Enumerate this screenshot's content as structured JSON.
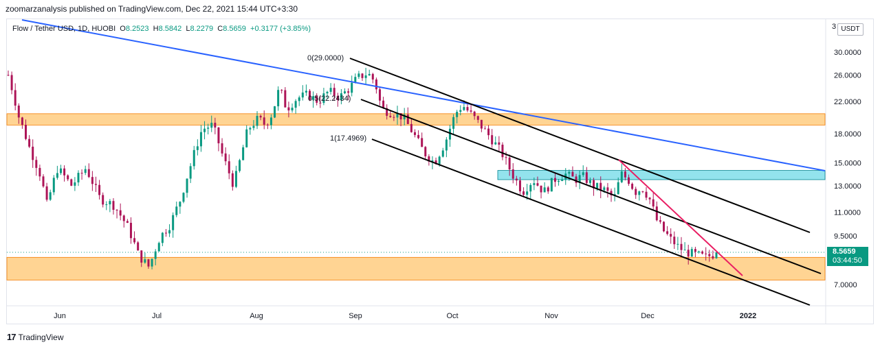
{
  "header": {
    "publication": "zoomarzanalysis published on TradingView.com, Dec 22, 2021 15:44 UTC+3:30"
  },
  "legend": {
    "symbol": "Flow / Tether USD, 1D, HUOBI",
    "open_label": "O",
    "open": "8.2523",
    "high_label": "H",
    "high": "8.5842",
    "low_label": "L",
    "low": "8.2279",
    "close_label": "C",
    "close": "8.5659",
    "change": "+0.3177 (+3.85%)"
  },
  "price_axis": {
    "unit": "USDT",
    "clipped_top_label": "3",
    "ticks": [
      "30.0000",
      "26.0000",
      "22.0000",
      "18.0000",
      "15.0000",
      "13.0000",
      "11.0000",
      "9.5000",
      "7.0000"
    ]
  },
  "last_price": {
    "price": "8.5659",
    "countdown": "03:44:50"
  },
  "footer": {
    "brand": "TradingView"
  },
  "colors": {
    "up": "#089981",
    "down": "#ad1457",
    "trendline_blue": "#2962ff",
    "channel": "#000000",
    "zone_orange": "#ffcc80",
    "zone_cyan": "#80deea",
    "trendline_pink": "#e91e63"
  },
  "chart_data": {
    "type": "candlestick",
    "x_axis_labels": [
      "Jun",
      "Jul",
      "Aug",
      "Sep",
      "Oct",
      "Nov",
      "Dec",
      "2022"
    ],
    "y_axis_ticks": [
      30.0,
      26.0,
      22.0,
      18.0,
      15.0,
      13.0,
      11.0,
      9.5,
      7.0
    ],
    "y_scale": "log",
    "annotations": [
      {
        "text": "0(29.0000)",
        "value": 29.0
      },
      {
        "text": "0.5(22.2434)",
        "value": 22.2434
      },
      {
        "text": "1(17.4969)",
        "value": 17.4969
      }
    ],
    "zones": [
      {
        "name": "upper-resistance-zone",
        "from": 19.0,
        "to": 20.4,
        "color": "#ffcc80"
      },
      {
        "name": "lower-support-zone",
        "from": 7.2,
        "to": 8.3,
        "color": "#ffcc80"
      },
      {
        "name": "mid-zone",
        "from": 13.5,
        "to": 14.3,
        "color": "#80deea"
      }
    ],
    "last": {
      "open": 8.2523,
      "high": 8.5842,
      "low": 8.2279,
      "close": 8.5659
    }
  }
}
